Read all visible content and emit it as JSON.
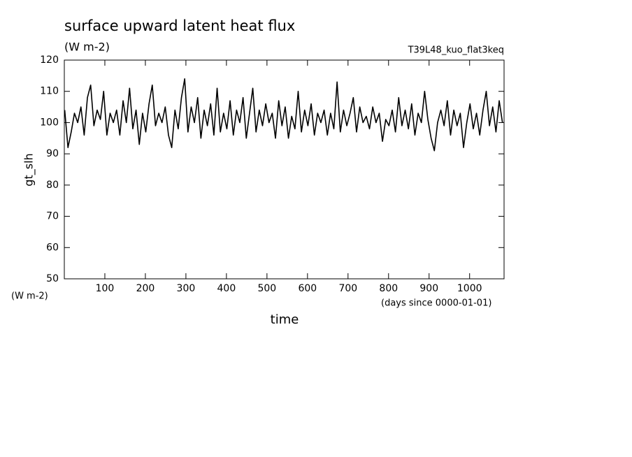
{
  "chart_data": {
    "type": "line",
    "title": "surface upward latent heat flux",
    "subtitle": "(W m-2)",
    "annotation": "T39L48_kuo_flat3keq",
    "y_label": "gt_slh",
    "y_units": "(W m-2)",
    "x_label": "time",
    "x_units": "(days since 0000-01-01)",
    "xlim": [
      0,
      1085
    ],
    "ylim": [
      50,
      120
    ],
    "xticks": [
      100,
      200,
      300,
      400,
      500,
      600,
      700,
      800,
      900,
      1000
    ],
    "yticks": [
      50,
      60,
      70,
      80,
      90,
      100,
      110,
      120
    ],
    "x": [
      1,
      9,
      17,
      25,
      33,
      41,
      49,
      57,
      65,
      73,
      81,
      89,
      97,
      105,
      113,
      121,
      129,
      137,
      145,
      153,
      161,
      169,
      177,
      185,
      193,
      201,
      209,
      217,
      225,
      233,
      241,
      249,
      257,
      265,
      273,
      281,
      289,
      297,
      305,
      313,
      321,
      329,
      337,
      345,
      353,
      361,
      369,
      377,
      385,
      393,
      401,
      409,
      417,
      425,
      433,
      441,
      449,
      457,
      465,
      473,
      481,
      489,
      497,
      505,
      513,
      521,
      529,
      537,
      545,
      553,
      561,
      569,
      577,
      585,
      593,
      601,
      609,
      617,
      625,
      633,
      641,
      649,
      657,
      665,
      673,
      681,
      689,
      697,
      705,
      713,
      721,
      729,
      737,
      745,
      753,
      761,
      769,
      777,
      785,
      793,
      801,
      809,
      817,
      825,
      833,
      841,
      849,
      857,
      865,
      873,
      881,
      889,
      897,
      905,
      913,
      921,
      929,
      937,
      945,
      953,
      961,
      969,
      977,
      985,
      993,
      1001,
      1009,
      1017,
      1025,
      1033,
      1041,
      1049,
      1057,
      1065,
      1073,
      1081
    ],
    "series": [
      {
        "color": "#000000",
        "values": [
          104,
          92,
          97,
          103,
          100,
          105,
          96,
          108,
          112,
          99,
          104,
          101,
          110,
          96,
          103,
          100,
          104,
          96,
          107,
          100,
          111,
          98,
          104,
          93,
          103,
          97,
          106,
          112,
          99,
          103,
          100,
          105,
          96,
          92,
          104,
          98,
          108,
          114,
          97,
          105,
          100,
          108,
          95,
          104,
          99,
          106,
          96,
          111,
          97,
          103,
          98,
          107,
          96,
          104,
          100,
          108,
          95,
          103,
          111,
          97,
          104,
          99,
          106,
          100,
          103,
          95,
          107,
          99,
          105,
          95,
          102,
          98,
          110,
          97,
          104,
          99,
          106,
          96,
          103,
          100,
          104,
          96,
          103,
          98,
          113,
          97,
          104,
          99,
          103,
          108,
          97,
          105,
          100,
          102,
          98,
          105,
          100,
          103,
          94,
          101,
          99,
          104,
          97,
          108,
          99,
          104,
          98,
          106,
          96,
          103,
          100,
          110,
          101,
          95,
          91,
          100,
          104,
          99,
          107,
          96,
          104,
          99,
          103,
          92,
          100,
          106,
          98,
          103,
          96,
          104,
          110,
          99,
          105,
          97,
          107,
          100
        ]
      }
    ]
  }
}
